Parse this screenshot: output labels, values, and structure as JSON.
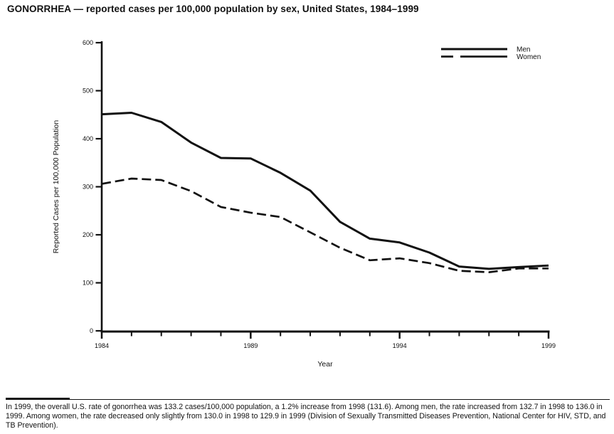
{
  "page": {
    "title": "GONORRHEA — reported cases per 100,000 population by sex, United States, 1984–1999",
    "footnote": "In 1999, the overall U.S. rate of gonorrhea was 133.2 cases/100,000 population, a 1.2% increase from 1998 (131.6). Among men, the rate increased from 132.7 in 1998 to 136.0 in 1999. Among women, the rate decreased only slightly from 130.0 in 1998 to 129.9 in 1999 (Division of Sexually Transmitted Diseases Prevention, National Center for HIV, STD, and TB Prevention)."
  },
  "chart_data": {
    "type": "line",
    "title": "GONORRHEA — reported cases per 100,000 population by sex, United States, 1984–1999",
    "xlabel": "Year",
    "ylabel": "Reported Cases per 100,000 Population",
    "x": [
      1984,
      1985,
      1986,
      1987,
      1988,
      1989,
      1990,
      1991,
      1992,
      1993,
      1994,
      1995,
      1996,
      1997,
      1998,
      1999
    ],
    "series": [
      {
        "name": "Men",
        "line_style": "solid",
        "color": "#111111",
        "values": [
          451,
          454,
          435,
          392,
          360,
          359,
          329,
          292,
          227,
          192,
          184,
          163,
          134,
          129,
          132.7,
          136.0
        ]
      },
      {
        "name": "Women",
        "line_style": "dashed",
        "color": "#111111",
        "values": [
          306,
          317,
          314,
          291,
          258,
          246,
          237,
          205,
          173,
          147,
          151,
          141,
          125,
          122,
          130.0,
          129.9
        ]
      }
    ],
    "ylim": [
      0,
      600
    ],
    "yticks": [
      0,
      100,
      200,
      300,
      400,
      500,
      600
    ],
    "xticks_major": [
      1984,
      1989,
      1994,
      1999
    ],
    "xticks_minor_every_year": true,
    "grid": false,
    "legend_position": "top-right",
    "legend": [
      "Men",
      "Women"
    ]
  },
  "colors": {
    "ink": "#111111",
    "background": "#ffffff"
  }
}
